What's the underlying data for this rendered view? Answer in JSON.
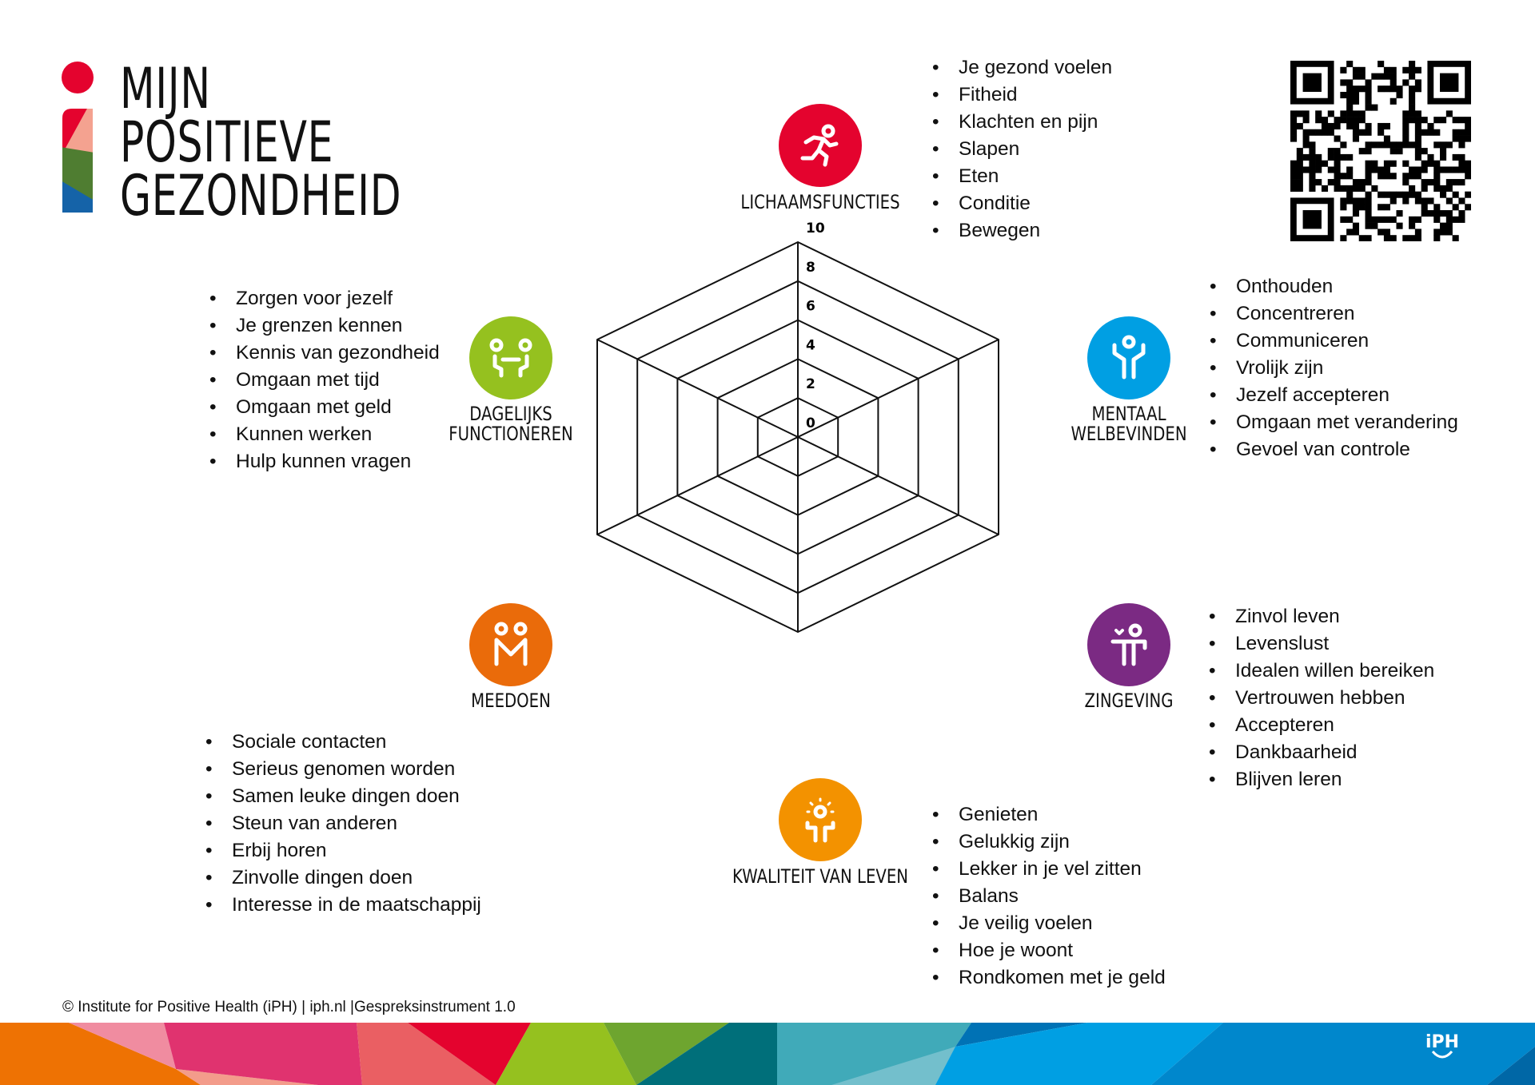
{
  "logo": {
    "lines": [
      "MIJN",
      "POSITIEVE",
      "GEZONDHEID"
    ],
    "colors": {
      "dot": "#e4032e",
      "red": "#e4032e",
      "salmon": "#f4a290",
      "green": "#4f7d31",
      "blue": "#1563a8"
    }
  },
  "dimensions": [
    {
      "id": "lichaamsfuncties",
      "label": [
        "LICHAAMSFUNCTIES"
      ],
      "color": "#e4032e",
      "icon": "running-person-icon",
      "items": [
        "Je gezond voelen",
        "Fitheid",
        "Klachten en pijn",
        "Slapen",
        "Eten",
        "Conditie",
        "Bewegen"
      ]
    },
    {
      "id": "mentaal-welbevinden",
      "label": [
        "MENTAAL",
        "WELBEVINDEN"
      ],
      "color": "#009fe3",
      "icon": "person-arms-up-icon",
      "items": [
        "Onthouden",
        "Concentreren",
        "Communiceren",
        "Vrolijk zijn",
        "Jezelf accepteren",
        "Omgaan met verandering",
        "Gevoel van controle"
      ]
    },
    {
      "id": "zingeving",
      "label": [
        "ZINGEVING"
      ],
      "color": "#7b2a83",
      "icon": "person-heart-icon",
      "items": [
        "Zinvol leven",
        "Levenslust",
        "Idealen willen bereiken",
        "Vertrouwen hebben",
        "Accepteren",
        "Dankbaarheid",
        "Blijven leren"
      ]
    },
    {
      "id": "kwaliteit-van-leven",
      "label": [
        "KWALITEIT VAN LEVEN"
      ],
      "color": "#f39200",
      "icon": "person-sun-icon",
      "items": [
        "Genieten",
        "Gelukkig zijn",
        "Lekker in je vel zitten",
        "Balans",
        "Je veilig voelen",
        "Hoe je woont",
        "Rondkomen met je geld"
      ]
    },
    {
      "id": "meedoen",
      "label": [
        "MEEDOEN"
      ],
      "color": "#ea6b0a",
      "icon": "two-people-icon",
      "items": [
        "Sociale contacten",
        "Serieus genomen worden",
        "Samen leuke dingen doen",
        "Steun van anderen",
        "Erbij horen",
        "Zinvolle dingen doen",
        "Interesse in de maatschappij"
      ]
    },
    {
      "id": "dagelijks-functioneren",
      "label": [
        "DAGELIJKS",
        "FUNCTIONEREN"
      ],
      "color": "#95c11f",
      "icon": "people-at-table-icon",
      "items": [
        "Zorgen voor jezelf",
        "Je grenzen kennen",
        "Kennis van gezondheid",
        "Omgaan met tijd",
        "Omgaan met geld",
        "Kunnen werken",
        "Hulp kunnen vragen"
      ]
    }
  ],
  "chart_data": {
    "type": "radar",
    "axes": [
      "LICHAAMSFUNCTIES",
      "MENTAAL WELBEVINDEN",
      "ZINGEVING",
      "KWALITEIT VAN LEVEN",
      "MEEDOEN",
      "DAGELIJKS FUNCTIONEREN"
    ],
    "range": [
      0,
      10
    ],
    "ticks": [
      "0",
      "2",
      "4",
      "6",
      "8",
      "10"
    ],
    "grid": true,
    "series": []
  },
  "qr_code": {
    "icon": "qr-code-icon"
  },
  "footer": {
    "text": "© Institute for Positive Health (iPH) | iph.nl |Gespreksinstrument 1.0",
    "brand": "iPH"
  }
}
